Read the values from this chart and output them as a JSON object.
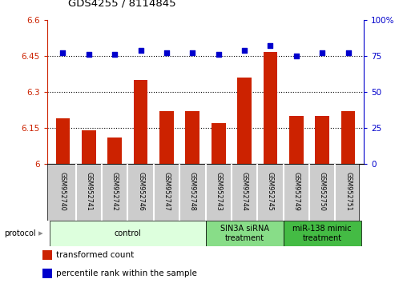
{
  "title": "GDS4255 / 8114845",
  "samples": [
    "GSM952740",
    "GSM952741",
    "GSM952742",
    "GSM952746",
    "GSM952747",
    "GSM952748",
    "GSM952743",
    "GSM952744",
    "GSM952745",
    "GSM952749",
    "GSM952750",
    "GSM952751"
  ],
  "transformed_counts": [
    6.19,
    6.14,
    6.11,
    6.35,
    6.22,
    6.22,
    6.17,
    6.36,
    6.465,
    6.2,
    6.2,
    6.22
  ],
  "percentile_ranks": [
    77,
    76,
    76,
    79,
    77,
    77,
    76,
    79,
    82,
    75,
    77,
    77
  ],
  "ylim_left": [
    6.0,
    6.6
  ],
  "ylim_right": [
    0,
    100
  ],
  "yticks_left": [
    6.0,
    6.15,
    6.3,
    6.45,
    6.6
  ],
  "ytick_labels_left": [
    "6",
    "6.15",
    "6.3",
    "6.45",
    "6.6"
  ],
  "yticks_right": [
    0,
    25,
    50,
    75,
    100
  ],
  "ytick_labels_right": [
    "0",
    "25",
    "50",
    "75",
    "100%"
  ],
  "bar_color": "#cc2200",
  "dot_color": "#0000cc",
  "hline_values": [
    6.15,
    6.3,
    6.45
  ],
  "groups": [
    {
      "label": "control",
      "start": 0,
      "end": 6,
      "color": "#ddffdd"
    },
    {
      "label": "SIN3A siRNA\ntreatment",
      "start": 6,
      "end": 9,
      "color": "#88dd88"
    },
    {
      "label": "miR-138 mimic\ntreatment",
      "start": 9,
      "end": 12,
      "color": "#44bb44"
    }
  ],
  "protocol_label": "protocol",
  "legend_bar_label": "transformed count",
  "legend_dot_label": "percentile rank within the sample",
  "bar_width": 0.55,
  "base_value": 6.0,
  "label_box_color": "#cccccc",
  "label_box_edge_color": "#ffffff"
}
